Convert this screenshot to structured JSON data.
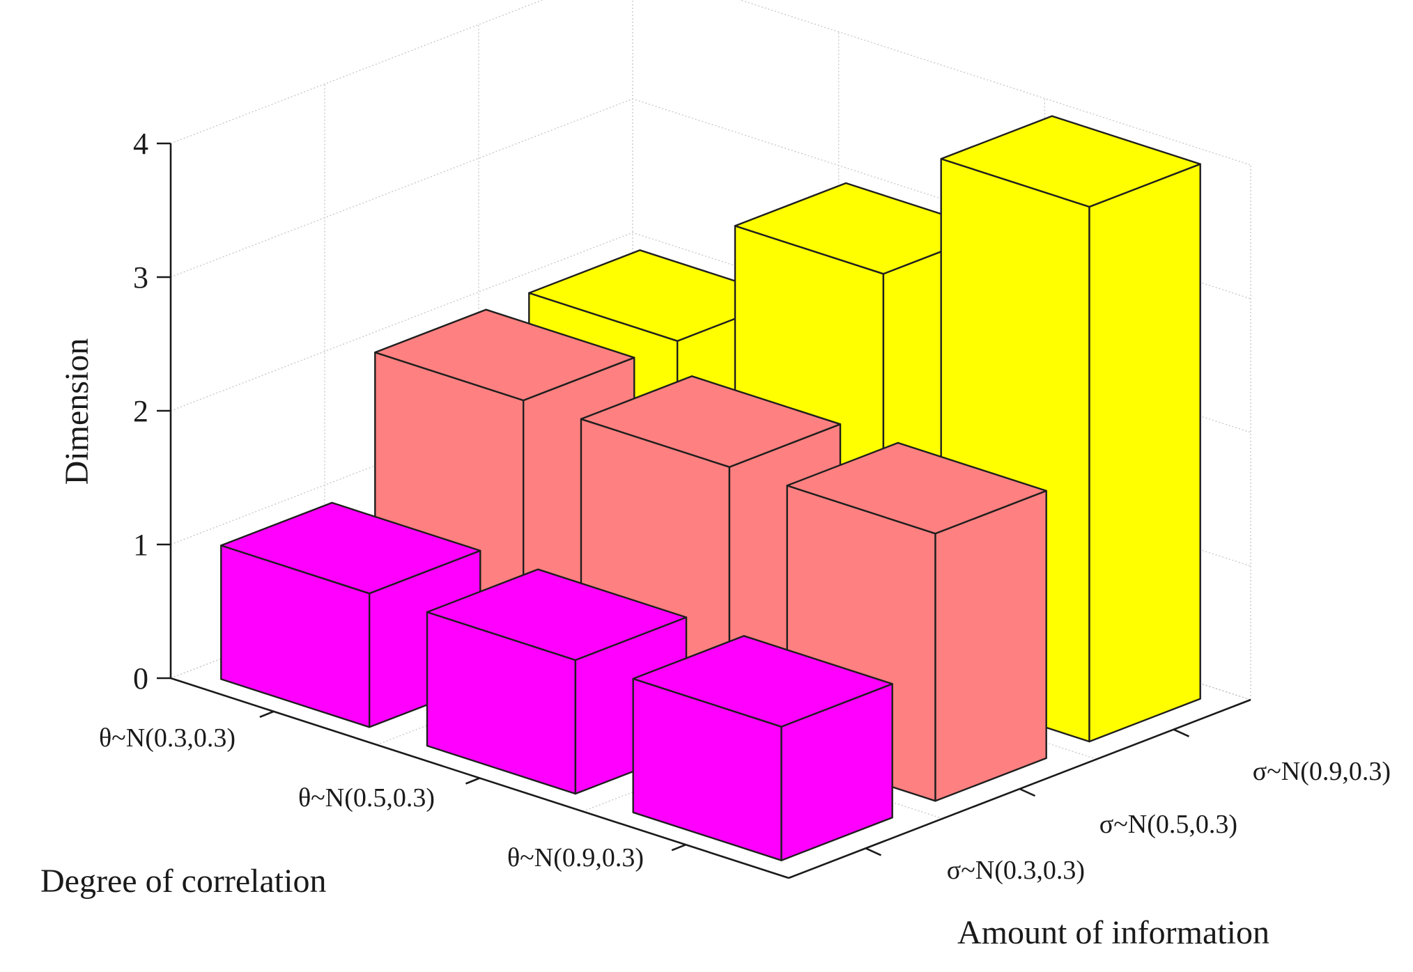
{
  "chart_data": {
    "type": "bar3d",
    "title": "",
    "zlabel": "Dimension",
    "xlabel": "Degree of correlation",
    "ylabel": "Amount of information",
    "zlim": [
      0,
      4
    ],
    "z_ticks": [
      "0",
      "1",
      "2",
      "3",
      "4"
    ],
    "x_categories": [
      "θ~N(0.3,0.3)",
      "θ~N(0.5,0.3)",
      "θ~N(0.9,0.3)"
    ],
    "y_categories": [
      "σ~N(0.3,0.3)",
      "σ~N(0.5,0.3)",
      "σ~N(0.9,0.3)"
    ],
    "series": [
      {
        "name": "σ~N(0.3,0.3)",
        "color": "#ff00ff",
        "values": [
          1,
          1,
          1
        ]
      },
      {
        "name": "σ~N(0.5,0.3)",
        "color": "#ff8080",
        "values": [
          2,
          2,
          2
        ]
      },
      {
        "name": "σ~N(0.9,0.3)",
        "color": "#ffff00",
        "values": [
          2,
          3,
          4
        ]
      }
    ],
    "grid": true
  }
}
